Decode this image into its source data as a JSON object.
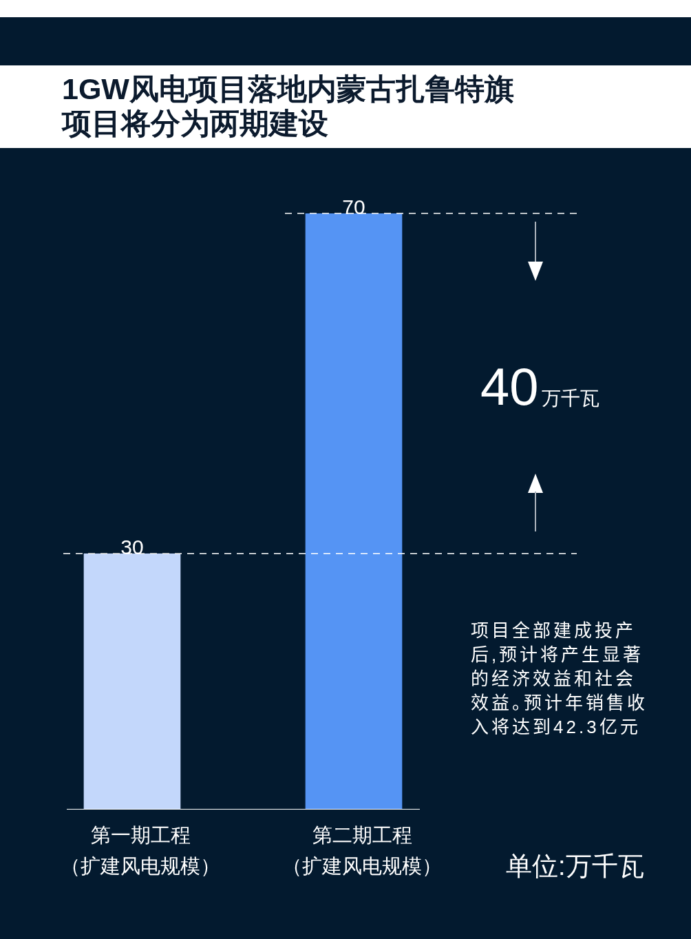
{
  "chart_data": {
    "type": "bar",
    "title": "1GW风电项目落地内蒙古扎鲁特旗项目将分为两期建设",
    "categories": [
      "第一期工程（扩建风电规模）",
      "第二期工程（扩建风电规模）"
    ],
    "values": [
      30,
      70
    ],
    "colors": [
      "#c3d7fb",
      "#5594f4"
    ],
    "data_labels": true,
    "ref_lines": [
      {
        "axis": "y",
        "value": 30,
        "color": "#ffffff",
        "line_style": "dashed"
      },
      {
        "axis": "y",
        "value": 70,
        "color": "#ffffff",
        "line_style": "dashed"
      }
    ],
    "annotations": [
      "40万千瓦",
      "项目全部建成投产后,预计将产生显著的经济效益和社会效益。预计年销售收入将达到42.3亿元",
      "单位:万千瓦"
    ],
    "grid": false,
    "legend": false
  }
}
